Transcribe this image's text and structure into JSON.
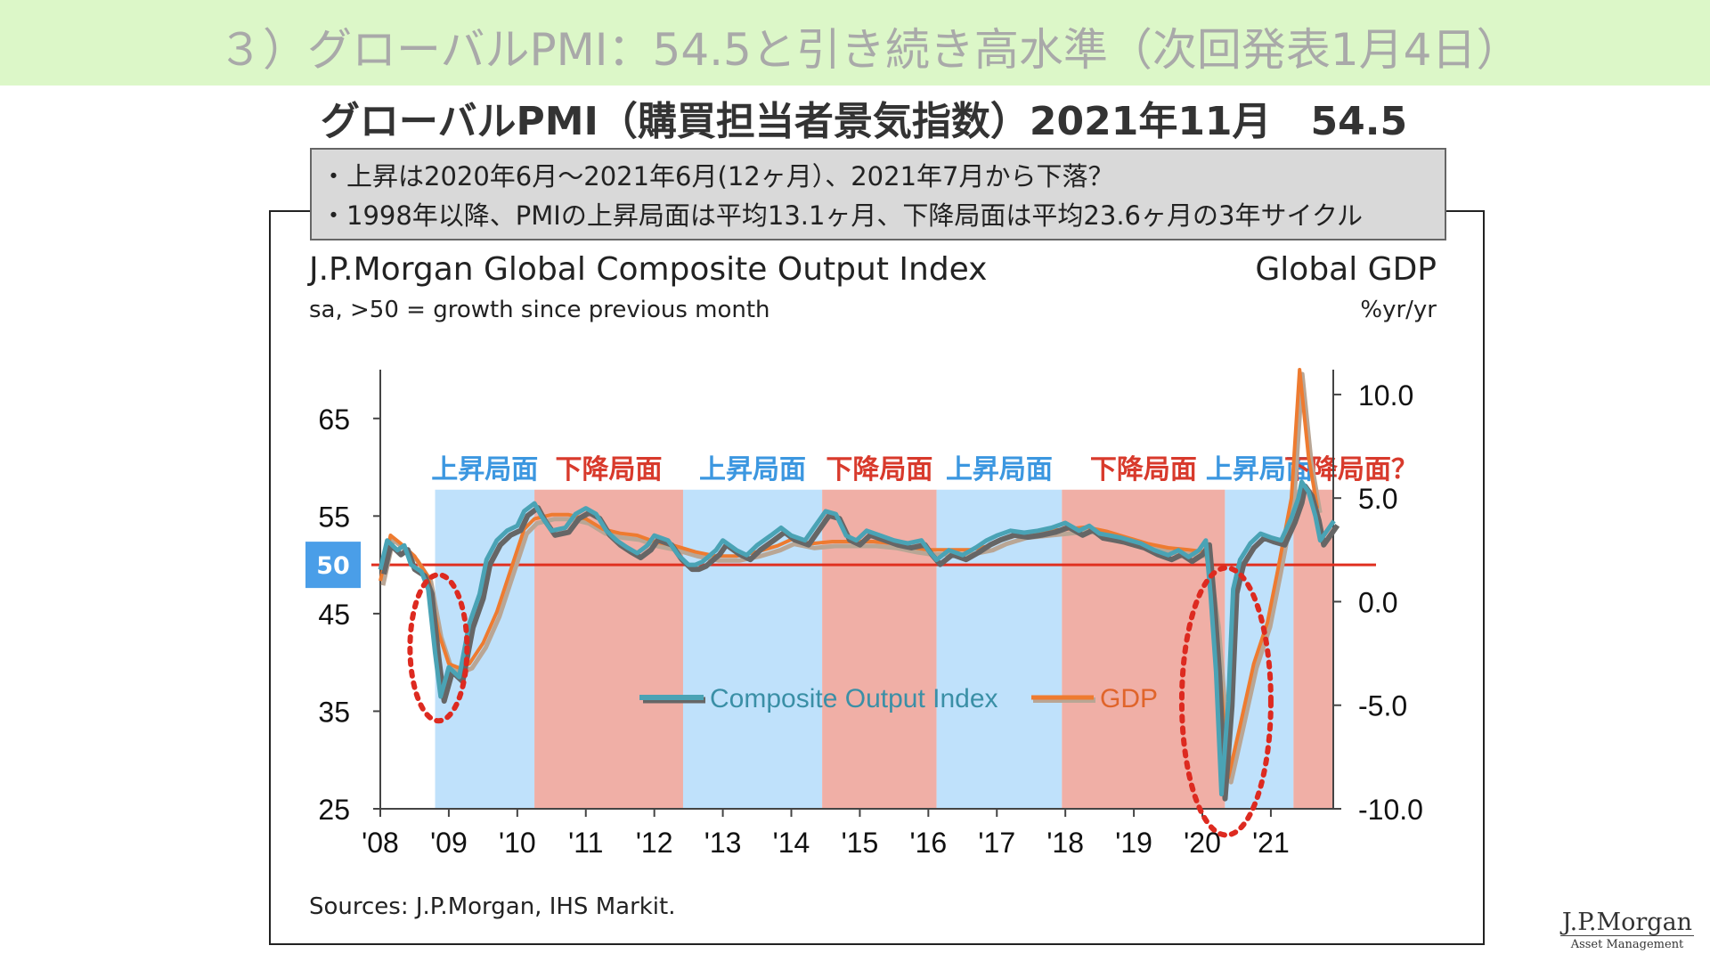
{
  "slide_title": "３）グローバルPMI：54.5と引き続き高水準（次回発表1月4日）",
  "subtitle": "グローバルPMI（購買担当者景気指数）2021年11月　54.5",
  "notes": [
    "・上昇は2020年6月～2021年6月(12ヶ月）、2021年7月から下落？",
    "・1998年以降、PMIの上昇局面は平均13.1ヶ月、下降局面は平均23.6ヶ月の3年サイクル"
  ],
  "chart_title": "J.P.Morgan Global Composite Output Index",
  "chart_subtitle": "sa, >50 = growth since previous month",
  "right_axis_title": "Global GDP",
  "right_axis_unit": "%yr/yr",
  "source": "Sources: J.P.Morgan, IHS Markit.",
  "logo": {
    "name": "J.P.Morgan",
    "sub": "Asset Management"
  },
  "colors": {
    "banner": "#dcf7c8",
    "pmi": "#4aa3b5",
    "pmi_shadow": "#666666",
    "gdp": "#ee7b30",
    "gdp_shadow": "#b9a695",
    "rising": "#bfe1fb",
    "falling": "#f0afa6",
    "rising_label": "#3c97e0",
    "falling_label": "#d83a2c",
    "fifty_badge": "#4a9ee8",
    "fifty_line": "#e03020",
    "circle": "#dd2a20"
  },
  "chart_data": {
    "type": "line",
    "x_ticks": [
      "'08",
      "'09",
      "'10",
      "'11",
      "'12",
      "'13",
      "'14",
      "'15",
      "'16",
      "'17",
      "'18",
      "'19",
      "'20",
      "'21"
    ],
    "xlim": [
      2008.0,
      2021.95
    ],
    "y_left": {
      "ticks": [
        65,
        55,
        45,
        35,
        25
      ],
      "ylim": [
        25,
        70
      ]
    },
    "y_right": {
      "ticks": [
        "10.0",
        "5.0",
        "0.0",
        "-5.0",
        "-10.0"
      ],
      "ylim": [
        -10,
        11.2
      ]
    },
    "reference_line": {
      "value": 50,
      "label": "50"
    },
    "legend": [
      "Composite Output Index",
      "GDP"
    ],
    "legend_placement": "center-bottom",
    "phases": [
      {
        "label": "上昇局面",
        "type": "rising",
        "start": 2008.8,
        "end": 2010.25
      },
      {
        "label": "下降局面",
        "type": "falling",
        "start": 2010.25,
        "end": 2012.42
      },
      {
        "label": "上昇局面",
        "type": "rising",
        "start": 2012.42,
        "end": 2014.45
      },
      {
        "label": "下降局面",
        "type": "falling",
        "start": 2014.45,
        "end": 2016.12
      },
      {
        "label": "上昇局面",
        "type": "rising",
        "start": 2016.12,
        "end": 2017.95
      },
      {
        "label": "下降局面",
        "type": "falling",
        "start": 2017.95,
        "end": 2020.33
      },
      {
        "label": "上昇局面",
        "type": "rising",
        "start": 2020.33,
        "end": 2021.33
      },
      {
        "label": "下降局面？",
        "type": "falling",
        "start": 2021.33,
        "end": 2021.92
      }
    ],
    "series": [
      {
        "name": "Composite Output Index",
        "axis": "left",
        "points": [
          [
            2008.0,
            49.5
          ],
          [
            2008.1,
            52.5
          ],
          [
            2008.25,
            51.5
          ],
          [
            2008.35,
            52
          ],
          [
            2008.45,
            50
          ],
          [
            2008.6,
            49.3
          ],
          [
            2008.7,
            47.5
          ],
          [
            2008.8,
            41
          ],
          [
            2008.88,
            36.5
          ],
          [
            2009.0,
            39.5
          ],
          [
            2009.15,
            38.5
          ],
          [
            2009.3,
            44
          ],
          [
            2009.45,
            47
          ],
          [
            2009.55,
            50.5
          ],
          [
            2009.7,
            52.5
          ],
          [
            2009.85,
            53.5
          ],
          [
            2010.0,
            54
          ],
          [
            2010.1,
            55.5
          ],
          [
            2010.25,
            56.3
          ],
          [
            2010.35,
            55
          ],
          [
            2010.5,
            53.5
          ],
          [
            2010.7,
            53.8
          ],
          [
            2010.85,
            55.2
          ],
          [
            2011.0,
            55.8
          ],
          [
            2011.15,
            55.2
          ],
          [
            2011.3,
            53.5
          ],
          [
            2011.45,
            52.5
          ],
          [
            2011.6,
            51.8
          ],
          [
            2011.75,
            51.2
          ],
          [
            2011.9,
            52
          ],
          [
            2012.0,
            53
          ],
          [
            2012.2,
            52.5
          ],
          [
            2012.35,
            51
          ],
          [
            2012.5,
            50
          ],
          [
            2012.6,
            50
          ],
          [
            2012.7,
            50.3
          ],
          [
            2012.9,
            51.5
          ],
          [
            2013.0,
            52.5
          ],
          [
            2013.2,
            51.5
          ],
          [
            2013.35,
            51
          ],
          [
            2013.5,
            52
          ],
          [
            2013.7,
            53
          ],
          [
            2013.85,
            53.8
          ],
          [
            2014.0,
            53
          ],
          [
            2014.2,
            52.5
          ],
          [
            2014.35,
            54
          ],
          [
            2014.5,
            55.5
          ],
          [
            2014.65,
            55.2
          ],
          [
            2014.8,
            53
          ],
          [
            2014.95,
            52.5
          ],
          [
            2015.1,
            53.5
          ],
          [
            2015.3,
            53
          ],
          [
            2015.5,
            52.5
          ],
          [
            2015.7,
            52.2
          ],
          [
            2015.9,
            52.5
          ],
          [
            2016.0,
            51.5
          ],
          [
            2016.12,
            50.5
          ],
          [
            2016.3,
            51.5
          ],
          [
            2016.5,
            51
          ],
          [
            2016.7,
            51.8
          ],
          [
            2016.85,
            52.5
          ],
          [
            2017.0,
            53
          ],
          [
            2017.2,
            53.5
          ],
          [
            2017.4,
            53.3
          ],
          [
            2017.6,
            53.5
          ],
          [
            2017.8,
            53.8
          ],
          [
            2018.0,
            54.3
          ],
          [
            2018.2,
            53.5
          ],
          [
            2018.35,
            54
          ],
          [
            2018.5,
            53.2
          ],
          [
            2018.65,
            53
          ],
          [
            2018.8,
            52.8
          ],
          [
            2018.95,
            52.5
          ],
          [
            2019.1,
            52.2
          ],
          [
            2019.3,
            51.5
          ],
          [
            2019.5,
            51
          ],
          [
            2019.65,
            51.5
          ],
          [
            2019.8,
            50.8
          ],
          [
            2019.95,
            51.5
          ],
          [
            2020.05,
            52.5
          ],
          [
            2020.12,
            47
          ],
          [
            2020.2,
            39
          ],
          [
            2020.28,
            26.5
          ],
          [
            2020.38,
            36
          ],
          [
            2020.45,
            47.5
          ],
          [
            2020.55,
            50.5
          ],
          [
            2020.7,
            52.2
          ],
          [
            2020.85,
            53.2
          ],
          [
            2021.0,
            52.8
          ],
          [
            2021.15,
            52.5
          ],
          [
            2021.3,
            54.8
          ],
          [
            2021.4,
            56.8
          ],
          [
            2021.45,
            58.5
          ],
          [
            2021.55,
            57.5
          ],
          [
            2021.65,
            55
          ],
          [
            2021.72,
            52.5
          ],
          [
            2021.82,
            53.5
          ],
          [
            2021.92,
            54.5
          ]
        ]
      },
      {
        "name": "GDP",
        "axis": "right",
        "points": [
          [
            2008.0,
            1.0
          ],
          [
            2008.15,
            3.2
          ],
          [
            2008.3,
            2.8
          ],
          [
            2008.5,
            2.2
          ],
          [
            2008.7,
            1.2
          ],
          [
            2008.85,
            -1.5
          ],
          [
            2009.0,
            -3.0
          ],
          [
            2009.15,
            -3.2
          ],
          [
            2009.3,
            -3.0
          ],
          [
            2009.5,
            -2.0
          ],
          [
            2009.7,
            -0.5
          ],
          [
            2009.9,
            1.5
          ],
          [
            2010.1,
            3.5
          ],
          [
            2010.25,
            4.0
          ],
          [
            2010.5,
            4.2
          ],
          [
            2010.75,
            4.2
          ],
          [
            2011.0,
            4.0
          ],
          [
            2011.25,
            3.5
          ],
          [
            2011.5,
            3.3
          ],
          [
            2011.75,
            3.2
          ],
          [
            2012.0,
            2.9
          ],
          [
            2012.3,
            2.7
          ],
          [
            2012.6,
            2.4
          ],
          [
            2012.9,
            2.2
          ],
          [
            2013.2,
            2.2
          ],
          [
            2013.5,
            2.4
          ],
          [
            2013.8,
            2.7
          ],
          [
            2014.0,
            3.0
          ],
          [
            2014.3,
            2.8
          ],
          [
            2014.6,
            2.9
          ],
          [
            2014.9,
            2.9
          ],
          [
            2015.2,
            2.9
          ],
          [
            2015.5,
            2.8
          ],
          [
            2015.8,
            2.6
          ],
          [
            2016.0,
            2.5
          ],
          [
            2016.3,
            2.5
          ],
          [
            2016.6,
            2.5
          ],
          [
            2016.9,
            2.7
          ],
          [
            2017.1,
            3.0
          ],
          [
            2017.4,
            3.3
          ],
          [
            2017.7,
            3.4
          ],
          [
            2018.0,
            3.5
          ],
          [
            2018.3,
            3.6
          ],
          [
            2018.6,
            3.4
          ],
          [
            2018.9,
            3.1
          ],
          [
            2019.2,
            2.8
          ],
          [
            2019.5,
            2.6
          ],
          [
            2019.8,
            2.5
          ],
          [
            2020.05,
            2.4
          ],
          [
            2020.2,
            -1.0
          ],
          [
            2020.38,
            -8.5
          ],
          [
            2020.55,
            -6.0
          ],
          [
            2020.75,
            -3.0
          ],
          [
            2020.95,
            -1.0
          ],
          [
            2021.1,
            1.5
          ],
          [
            2021.3,
            5.0
          ],
          [
            2021.42,
            11.2
          ],
          [
            2021.55,
            7.0
          ],
          [
            2021.68,
            4.5
          ]
        ]
      }
    ]
  }
}
